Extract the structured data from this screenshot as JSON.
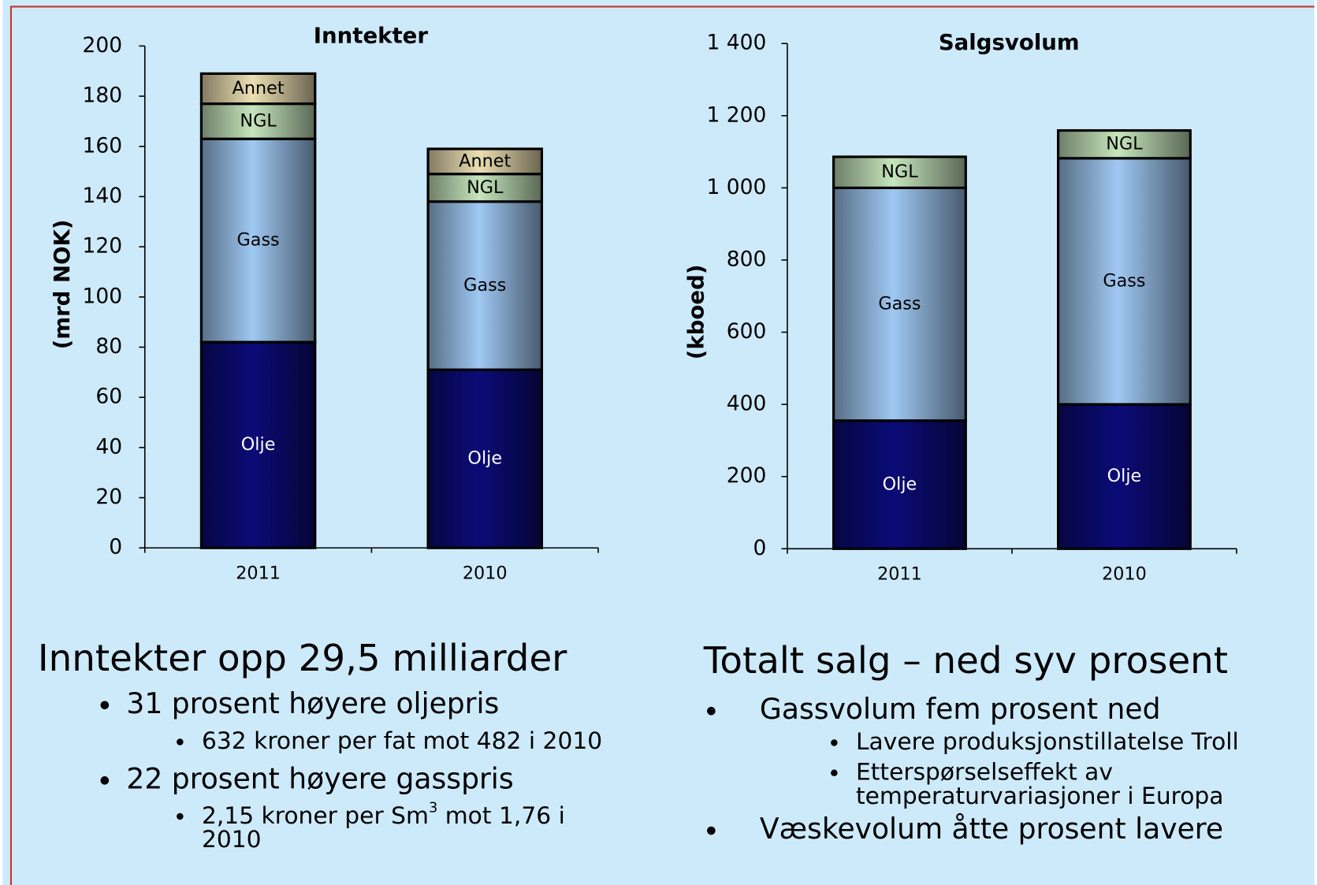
{
  "chart_data": [
    {
      "type": "bar",
      "stacked": true,
      "title": "Inntekter",
      "y_label": "(mrd NOK)",
      "categories": [
        "2011",
        "2010"
      ],
      "series": [
        {
          "name": "Olje",
          "color": "#0b0b78",
          "label_color": "#ffffff",
          "values": [
            82,
            71
          ]
        },
        {
          "name": "Gass",
          "color": "#9fc8f2",
          "label_color": "#000000",
          "values": [
            81,
            67
          ]
        },
        {
          "name": "NGL",
          "color": "#c6e6bd",
          "label_color": "#000000",
          "values": [
            14,
            11
          ]
        },
        {
          "name": "Annet",
          "color": "#ebdfb2",
          "label_color": "#000000",
          "values": [
            12,
            10
          ]
        }
      ],
      "ylim": [
        0,
        200
      ],
      "yticks": [
        0,
        20,
        40,
        60,
        80,
        100,
        120,
        140,
        160,
        180,
        200
      ]
    },
    {
      "type": "bar",
      "stacked": true,
      "title": "Salgsvolum",
      "y_label": "(kboed)",
      "categories": [
        "2011",
        "2010"
      ],
      "series": [
        {
          "name": "Olje",
          "color": "#0b0b78",
          "label_color": "#ffffff",
          "values": [
            355,
            400
          ]
        },
        {
          "name": "Gass",
          "color": "#9fc8f2",
          "label_color": "#000000",
          "values": [
            645,
            682
          ]
        },
        {
          "name": "NGL",
          "color": "#c6e6bd",
          "label_color": "#000000",
          "values": [
            86,
            77
          ]
        }
      ],
      "ylim": [
        0,
        1400
      ],
      "yticks": [
        0,
        200,
        400,
        600,
        800,
        {
          "value": 1000,
          "label": "1 000"
        },
        {
          "value": 1200,
          "label": "1 200"
        },
        {
          "value": 1400,
          "label": "1 400"
        }
      ]
    }
  ],
  "text_blocks": [
    {
      "title": "Inntekter opp 29,5 milliarder",
      "items": [
        {
          "level": 1,
          "lines": [
            "31 prosent høyere oljepris"
          ]
        },
        {
          "level": 2,
          "lines": [
            "632 kroner per fat mot 482 i 2010"
          ]
        },
        {
          "level": 1,
          "lines": [
            "22 prosent høyere gasspris"
          ]
        },
        {
          "level": 2,
          "lines": [
            [
              "2,15 kroner per Sm",
              "3",
              " mot 1,76 i"
            ],
            "2010"
          ]
        }
      ]
    },
    {
      "title": "Totalt salg – ned syv prosent",
      "items": [
        {
          "level": 1,
          "lines": [
            "Gassvolum fem prosent ned"
          ]
        },
        {
          "level": 2,
          "lines": [
            "Lavere produksjonstillatelse Troll"
          ]
        },
        {
          "level": 2,
          "lines": [
            "Etterspørselseffekt av",
            "temperaturvariasjoner i Europa"
          ]
        },
        {
          "level": 1,
          "lines": [
            "Væskevolum åtte prosent lavere"
          ]
        }
      ]
    }
  ]
}
